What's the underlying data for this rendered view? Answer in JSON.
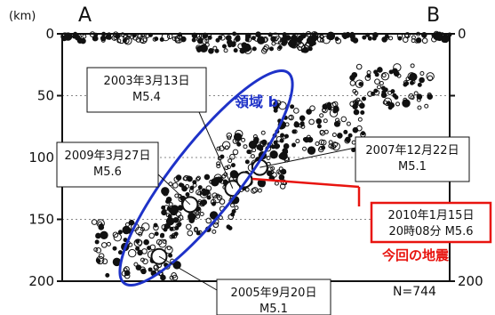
{
  "chart_data": {
    "type": "scatter",
    "title": "",
    "ylabel": "(km)",
    "y_unit": "(km)",
    "ylim": [
      0,
      200
    ],
    "y_ticks": [
      0,
      50,
      100,
      150,
      200
    ],
    "y_tick_labels": [
      "0",
      "50",
      "100",
      "150",
      "200"
    ],
    "right_tick_labels": [
      "0",
      "200"
    ],
    "section_ends": {
      "left": "A",
      "right": "B"
    },
    "grid": "horizontal dotted",
    "count_label": "N=744",
    "region": {
      "label": "領域 b",
      "color": "#1e32c8"
    },
    "annotation": {
      "label": "今回の地震",
      "color": "#e8140f"
    },
    "highlighted_events": [
      {
        "date": "2003年3月13日",
        "magnitude": "M5.4",
        "x": 0.44,
        "depth": 125
      },
      {
        "date": "2009年3月27日",
        "magnitude": "M5.6",
        "x": 0.33,
        "depth": 138
      },
      {
        "date": "2007年12月22日",
        "magnitude": "M5.1",
        "x": 0.51,
        "depth": 108
      },
      {
        "date": "2010年1月15日",
        "time": "20時08分",
        "magnitude": "M5.6",
        "x": 0.47,
        "depth": 118,
        "current": true
      },
      {
        "date": "2005年9月20日",
        "magnitude": "M5.1",
        "x": 0.25,
        "depth": 180
      }
    ],
    "point_clusters": [
      {
        "x_from": 0.0,
        "x_to": 1.0,
        "depth_from": 0,
        "depth_to": 6,
        "count": 160
      },
      {
        "x_from": 0.35,
        "x_to": 0.65,
        "depth_from": 4,
        "depth_to": 14,
        "count": 70
      },
      {
        "x_from": 0.08,
        "x_to": 0.3,
        "depth_from": 150,
        "depth_to": 198,
        "count": 100
      },
      {
        "x_from": 0.26,
        "x_to": 0.45,
        "depth_from": 115,
        "depth_to": 162,
        "count": 130
      },
      {
        "x_from": 0.4,
        "x_to": 0.58,
        "depth_from": 80,
        "depth_to": 128,
        "count": 110
      },
      {
        "x_from": 0.55,
        "x_to": 0.78,
        "depth_from": 55,
        "depth_to": 95,
        "count": 95
      },
      {
        "x_from": 0.74,
        "x_to": 0.95,
        "depth_from": 25,
        "depth_to": 60,
        "count": 75
      }
    ],
    "colors": {
      "points": "#111111",
      "region_ellipse": "#1e32c8",
      "current_event": "#e8140f"
    }
  }
}
